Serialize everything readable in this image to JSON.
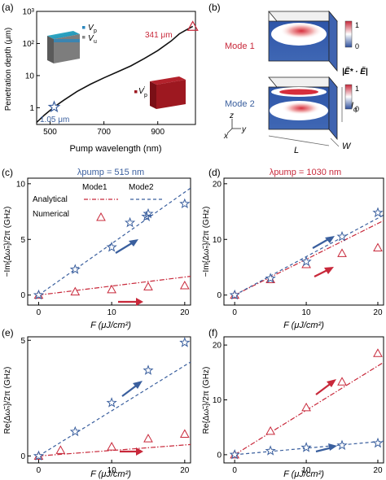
{
  "figure": {
    "colors": {
      "red": "#c8283a",
      "blue": "#3a5f9e",
      "black": "#111111"
    },
    "legend": {
      "mode1": "Mode1",
      "mode2": "Mode2",
      "analytical": "Analytical",
      "numerical": "Numerical"
    },
    "panel_b": {
      "label": "(b)",
      "mode1": "Mode 1",
      "mode2": "Mode 2",
      "colorbar_max": "1",
      "colorbar_min": "0",
      "colorbar_label": "|Ẽ* · Ẽ|",
      "dim_H": "H",
      "dim_H_sub": "q",
      "dim_L": "L",
      "dim_W": "W",
      "axis_x": "x",
      "axis_y": "y",
      "axis_z": "z"
    }
  },
  "chart_data": [
    {
      "id": "a",
      "label": "(a)",
      "type": "line",
      "xlabel": "Pump wavelength (nm)",
      "ylabel": "Penetration depth (μm)",
      "xlim": [
        450,
        1040
      ],
      "ylim": [
        0.3,
        1000
      ],
      "yscale": "log",
      "xticks": [
        500,
        700,
        900
      ],
      "yticks": [
        1,
        10,
        100,
        1000
      ],
      "ytick_labels": [
        "1",
        "10",
        "10²",
        "10³"
      ],
      "series": [
        {
          "x": [
            450,
            480,
            515,
            550,
            600,
            650,
            700,
            750,
            800,
            850,
            900,
            950,
            980,
            1000,
            1030
          ],
          "y": [
            0.35,
            0.6,
            1.05,
            1.7,
            3.2,
            5.4,
            8.5,
            13,
            20,
            34,
            60,
            120,
            200,
            250,
            341
          ]
        }
      ],
      "annotations": [
        {
          "text": "1.05 μm",
          "x": 515,
          "y": 1.05,
          "color": "#3a5f9e"
        },
        {
          "text": "341 μm",
          "x": 1030,
          "y": 341,
          "color": "#c8283a"
        }
      ],
      "inset_labels": {
        "vp": "V",
        "vp_sub": "p",
        "vu": "V",
        "vu_sub": "u",
        "vp2": "V",
        "vp2_sub": "p",
        "vp2_sup": "'"
      }
    },
    {
      "id": "c",
      "label": "(c)",
      "title": "λpump = 515 nm",
      "type": "scatter",
      "xlabel": "F (μJ/cm²)",
      "ylabel": "−Im{Δω̃ₙ}/2π (GHz)",
      "xlim": [
        -1.5,
        20.8
      ],
      "ylim": [
        -0.9,
        10.5
      ],
      "xticks": [
        0,
        10,
        20
      ],
      "yticks": [
        0,
        5,
        10
      ],
      "analytical": [
        {
          "name": "Mode1",
          "x": [
            0,
            21
          ],
          "y": [
            0,
            1.7
          ]
        },
        {
          "name": "Mode2",
          "x": [
            0,
            21
          ],
          "y": [
            0,
            9.7
          ]
        }
      ],
      "numerical": [
        {
          "name": "Mode1",
          "x": [
            0,
            5,
            10,
            15,
            20
          ],
          "y": [
            0,
            0.3,
            0.5,
            0.75,
            0.85
          ]
        },
        {
          "name": "Mode2",
          "x": [
            0,
            5,
            10,
            12.5,
            15,
            20
          ],
          "y": [
            0,
            2.3,
            4.3,
            6.5,
            7.3,
            8.2
          ]
        }
      ]
    },
    {
      "id": "d",
      "label": "(d)",
      "title": "λpump = 1030 nm",
      "type": "scatter",
      "xlabel": "F (μJ/cm²)",
      "ylabel": "−Im{Δω̃ₙ}/2π (GHz)",
      "xlim": [
        -1.5,
        20.8
      ],
      "ylim": [
        -1.8,
        21
      ],
      "xticks": [
        0,
        10,
        20
      ],
      "yticks": [
        0,
        10,
        20
      ],
      "analytical": [
        {
          "name": "Mode1",
          "x": [
            0,
            21
          ],
          "y": [
            0,
            13.5
          ]
        },
        {
          "name": "Mode2",
          "x": [
            0,
            21
          ],
          "y": [
            0,
            14.5
          ]
        }
      ],
      "numerical": [
        {
          "name": "Mode1",
          "x": [
            0,
            5,
            10,
            15,
            20
          ],
          "y": [
            0,
            2.8,
            5.5,
            7.5,
            8.5
          ]
        },
        {
          "name": "Mode2",
          "x": [
            0,
            5,
            10,
            15,
            20
          ],
          "y": [
            0,
            3.0,
            6.0,
            10.5,
            14.8
          ]
        }
      ]
    },
    {
      "id": "e",
      "label": "(e)",
      "type": "scatter",
      "xlabel": "F (μJ/cm²)",
      "ylabel": "Re{Δω̃ₙ}/2π (GHz)",
      "xlim": [
        -1.5,
        20.8
      ],
      "ylim": [
        -0.3,
        5.15
      ],
      "xticks": [
        0,
        10,
        20
      ],
      "yticks": [
        0,
        5
      ],
      "analytical": [
        {
          "name": "Mode1",
          "x": [
            0,
            21
          ],
          "y": [
            0,
            0.5
          ]
        },
        {
          "name": "Mode2",
          "x": [
            0,
            21
          ],
          "y": [
            0,
            4.1
          ]
        }
      ],
      "numerical": [
        {
          "name": "Mode1",
          "x": [
            0,
            3,
            10,
            15,
            20
          ],
          "y": [
            0,
            0.25,
            0.4,
            0.75,
            0.95
          ]
        },
        {
          "name": "Mode2",
          "x": [
            0,
            5,
            10,
            15,
            20
          ],
          "y": [
            0,
            1.05,
            2.3,
            3.7,
            4.9
          ]
        }
      ]
    },
    {
      "id": "f",
      "label": "(f)",
      "type": "scatter",
      "xlabel": "F (μJ/cm²)",
      "ylabel": "Re{Δω̃ₙ}/2π (GHz)",
      "xlim": [
        -1.5,
        20.8
      ],
      "ylim": [
        -1.5,
        21.5
      ],
      "xticks": [
        0,
        10,
        20
      ],
      "yticks": [
        0,
        10,
        20
      ],
      "analytical": [
        {
          "name": "Mode1",
          "x": [
            0,
            21
          ],
          "y": [
            0,
            17
          ]
        },
        {
          "name": "Mode2",
          "x": [
            0,
            21
          ],
          "y": [
            0,
            2.5
          ]
        }
      ],
      "numerical": [
        {
          "name": "Mode1",
          "x": [
            0,
            5,
            10,
            15,
            20
          ],
          "y": [
            0,
            4.3,
            8.6,
            13.3,
            18.5
          ]
        },
        {
          "name": "Mode2",
          "x": [
            0,
            5,
            10,
            15,
            20
          ],
          "y": [
            0,
            0.7,
            1.3,
            1.7,
            2.1
          ]
        }
      ]
    }
  ]
}
